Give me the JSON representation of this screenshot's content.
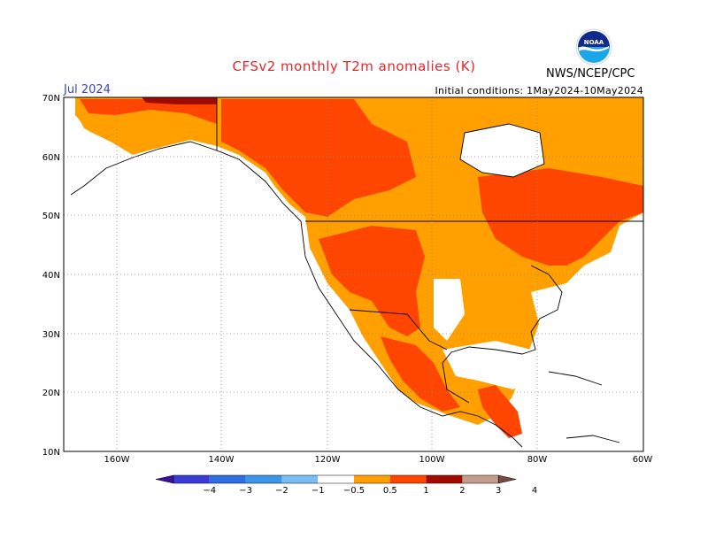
{
  "header": {
    "title": "CFSv2 monthly T2m anomalies (K)",
    "month": "Jul 2024",
    "initial_conditions": "Initial conditions: 1May2024-10May2024",
    "agency": "NWS/NCEP/CPC",
    "logo_text": "NOAA"
  },
  "map": {
    "lat_labels": [
      "70N",
      "60N",
      "50N",
      "40N",
      "30N",
      "20N",
      "10N"
    ],
    "lon_labels": [
      "160W",
      "140W",
      "120W",
      "100W",
      "80W",
      "60W"
    ],
    "grid": "dotted"
  },
  "colorbar": {
    "labels": [
      "-4",
      "-3",
      "-2",
      "-1",
      "-0.5",
      "0.5",
      "1",
      "2",
      "3",
      "4"
    ],
    "colors": [
      "#3c10a0",
      "#3a3ad6",
      "#2e6ee0",
      "#3c96e8",
      "#7abcf4",
      "#ffffff",
      "#ffa000",
      "#ff4600",
      "#a00a00",
      "#c49c8c",
      "#7a4a3a"
    ]
  },
  "colors": {
    "anom_05_1": "#ffa000",
    "anom_1_2": "#ff4600",
    "anom_2_3": "#a00a00",
    "title": "#e8262a",
    "month": "#3a44c8"
  }
}
